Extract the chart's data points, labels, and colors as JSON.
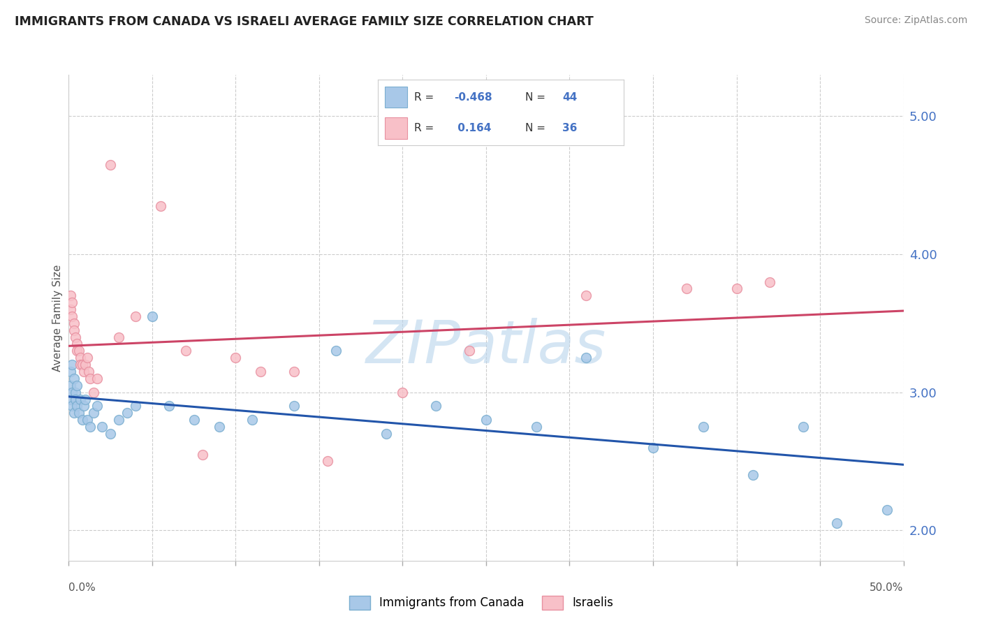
{
  "title": "IMMIGRANTS FROM CANADA VS ISRAELI AVERAGE FAMILY SIZE CORRELATION CHART",
  "source": "Source: ZipAtlas.com",
  "ylabel": "Average Family Size",
  "legend_label_blue": "Immigrants from Canada",
  "legend_label_pink": "Israelis",
  "r_blue": -0.468,
  "n_blue": 44,
  "r_pink": 0.164,
  "n_pink": 36,
  "blue_color": "#A8C8E8",
  "blue_edge_color": "#7AAED0",
  "pink_color": "#F8C0C8",
  "pink_edge_color": "#E890A0",
  "blue_line_color": "#2255AA",
  "pink_line_color": "#CC4466",
  "watermark": "ZIPatlas",
  "right_ytick_labels": [
    "2.00",
    "3.00",
    "4.00",
    "5.00"
  ],
  "right_ytick_values": [
    2.0,
    3.0,
    4.0,
    5.0
  ],
  "xlim": [
    0.0,
    0.5
  ],
  "ylim": [
    1.78,
    5.3
  ],
  "blue_x": [
    0.001,
    0.001,
    0.001,
    0.002,
    0.002,
    0.002,
    0.003,
    0.003,
    0.004,
    0.004,
    0.005,
    0.005,
    0.006,
    0.007,
    0.008,
    0.009,
    0.01,
    0.011,
    0.013,
    0.015,
    0.017,
    0.02,
    0.025,
    0.03,
    0.035,
    0.04,
    0.05,
    0.06,
    0.075,
    0.09,
    0.11,
    0.135,
    0.16,
    0.19,
    0.22,
    0.25,
    0.28,
    0.31,
    0.35,
    0.38,
    0.41,
    0.44,
    0.46,
    0.49
  ],
  "blue_y": [
    3.15,
    3.05,
    2.95,
    3.2,
    3.0,
    2.9,
    3.1,
    2.85,
    3.0,
    2.95,
    2.9,
    3.05,
    2.85,
    2.95,
    2.8,
    2.9,
    2.95,
    2.8,
    2.75,
    2.85,
    2.9,
    2.75,
    2.7,
    2.8,
    2.85,
    2.9,
    3.55,
    2.9,
    2.8,
    2.75,
    2.8,
    2.9,
    3.3,
    2.7,
    2.9,
    2.8,
    2.75,
    3.25,
    2.6,
    2.75,
    2.4,
    2.75,
    2.05,
    2.15
  ],
  "pink_x": [
    0.001,
    0.001,
    0.002,
    0.002,
    0.003,
    0.003,
    0.004,
    0.005,
    0.005,
    0.006,
    0.007,
    0.007,
    0.008,
    0.009,
    0.01,
    0.011,
    0.012,
    0.013,
    0.015,
    0.017,
    0.025,
    0.03,
    0.04,
    0.055,
    0.07,
    0.08,
    0.1,
    0.115,
    0.135,
    0.155,
    0.2,
    0.24,
    0.31,
    0.37,
    0.4,
    0.42
  ],
  "pink_y": [
    3.7,
    3.6,
    3.65,
    3.55,
    3.5,
    3.45,
    3.4,
    3.35,
    3.3,
    3.3,
    3.25,
    3.2,
    3.2,
    3.15,
    3.2,
    3.25,
    3.15,
    3.1,
    3.0,
    3.1,
    4.65,
    3.4,
    3.55,
    4.35,
    3.3,
    2.55,
    3.25,
    3.15,
    3.15,
    2.5,
    3.0,
    3.3,
    3.7,
    3.75,
    3.75,
    3.8
  ]
}
